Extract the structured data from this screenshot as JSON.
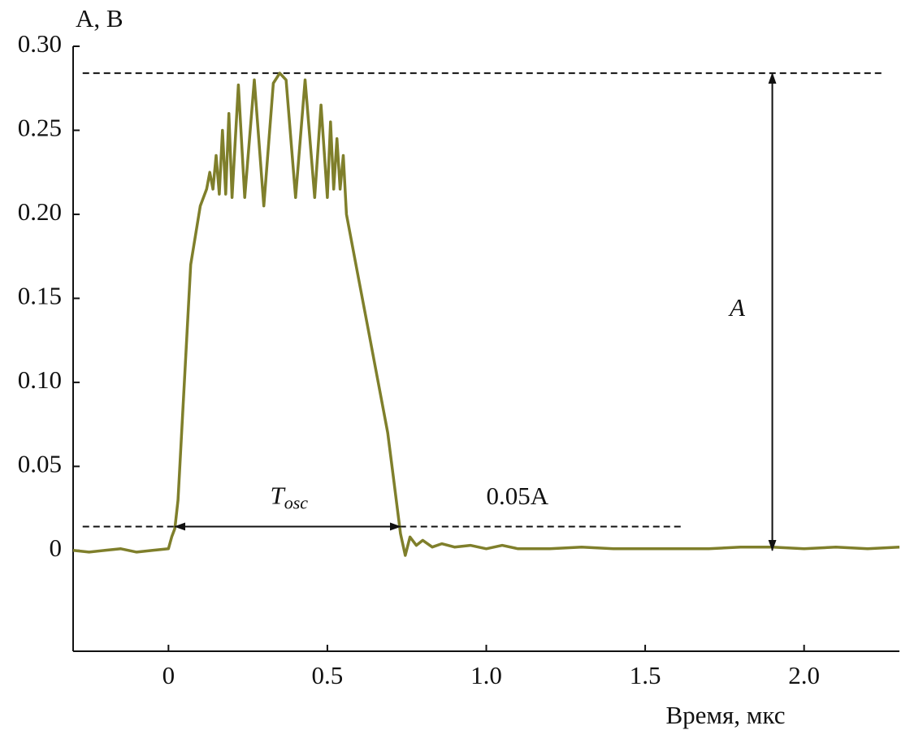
{
  "chart_data": {
    "type": "line",
    "y_label": "A, В",
    "x_label": "Время, мкс",
    "color": "#7f7f2b",
    "x": [
      -0.3,
      -0.25,
      -0.2,
      -0.15,
      -0.1,
      -0.05,
      0,
      0.01,
      0.02,
      0.03,
      0.05,
      0.07,
      0.1,
      0.12,
      0.13,
      0.14,
      0.15,
      0.16,
      0.17,
      0.18,
      0.19,
      0.2,
      0.22,
      0.24,
      0.27,
      0.3,
      0.33,
      0.35,
      0.37,
      0.4,
      0.43,
      0.46,
      0.48,
      0.5,
      0.51,
      0.52,
      0.53,
      0.54,
      0.55,
      0.56,
      0.58,
      0.6,
      0.63,
      0.66,
      0.69,
      0.71,
      0.73,
      0.745,
      0.76,
      0.78,
      0.8,
      0.83,
      0.86,
      0.9,
      0.95,
      1.0,
      1.05,
      1.1,
      1.2,
      1.3,
      1.4,
      1.5,
      1.6,
      1.7,
      1.8,
      1.9,
      2.0,
      2.1,
      2.2,
      2.3
    ],
    "values": [
      0,
      -0.001,
      0,
      0.001,
      -0.001,
      0,
      0.001,
      0.008,
      0.013,
      0.03,
      0.1,
      0.17,
      0.205,
      0.215,
      0.225,
      0.215,
      0.235,
      0.212,
      0.25,
      0.212,
      0.26,
      0.21,
      0.277,
      0.21,
      0.28,
      0.205,
      0.278,
      0.284,
      0.28,
      0.21,
      0.28,
      0.21,
      0.265,
      0.21,
      0.255,
      0.215,
      0.245,
      0.215,
      0.235,
      0.2,
      0.18,
      0.16,
      0.13,
      0.1,
      0.07,
      0.04,
      0.01,
      -0.003,
      0.008,
      0.003,
      0.006,
      0.002,
      0.004,
      0.002,
      0.003,
      0.001,
      0.003,
      0.001,
      0.001,
      0.002,
      0.001,
      0.001,
      0.001,
      0.001,
      0.002,
      0.002,
      0.001,
      0.002,
      0.001,
      0.002
    ],
    "xlim": [
      -0.3,
      2.3
    ],
    "ylim": [
      -0.06,
      0.3
    ],
    "xticks": [
      0,
      0.5,
      {
        "value": 1,
        "label": "1.0"
      },
      1.5,
      {
        "value": 2,
        "label": "2.0"
      }
    ],
    "yticks": [
      0,
      0.05,
      {
        "value": 0.1,
        "label": "0.10"
      },
      0.15,
      {
        "value": 0.2,
        "label": "0.20"
      },
      0.25,
      {
        "value": 0.3,
        "label": "0.30"
      }
    ],
    "hlines": [
      {
        "y": 0.284,
        "x": [
          -0.27,
          2.245
        ]
      },
      {
        "y": 0.0142,
        "x": [
          -0.27,
          1.62
        ]
      }
    ],
    "annotations": [
      {
        "text": "A",
        "x": 1.79,
        "y": 0.143,
        "arrow_x": 1.9,
        "arrow_y": [
          0,
          0.284
        ]
      },
      {
        "text": "T",
        "subscript": "osc",
        "x": 0.32,
        "y": 0.031,
        "arrow_x": [
          0.02,
          0.73
        ],
        "arrow_y": 0.0142
      },
      {
        "text": "0.05A",
        "x": 1.0,
        "y": 0.031
      }
    ]
  }
}
